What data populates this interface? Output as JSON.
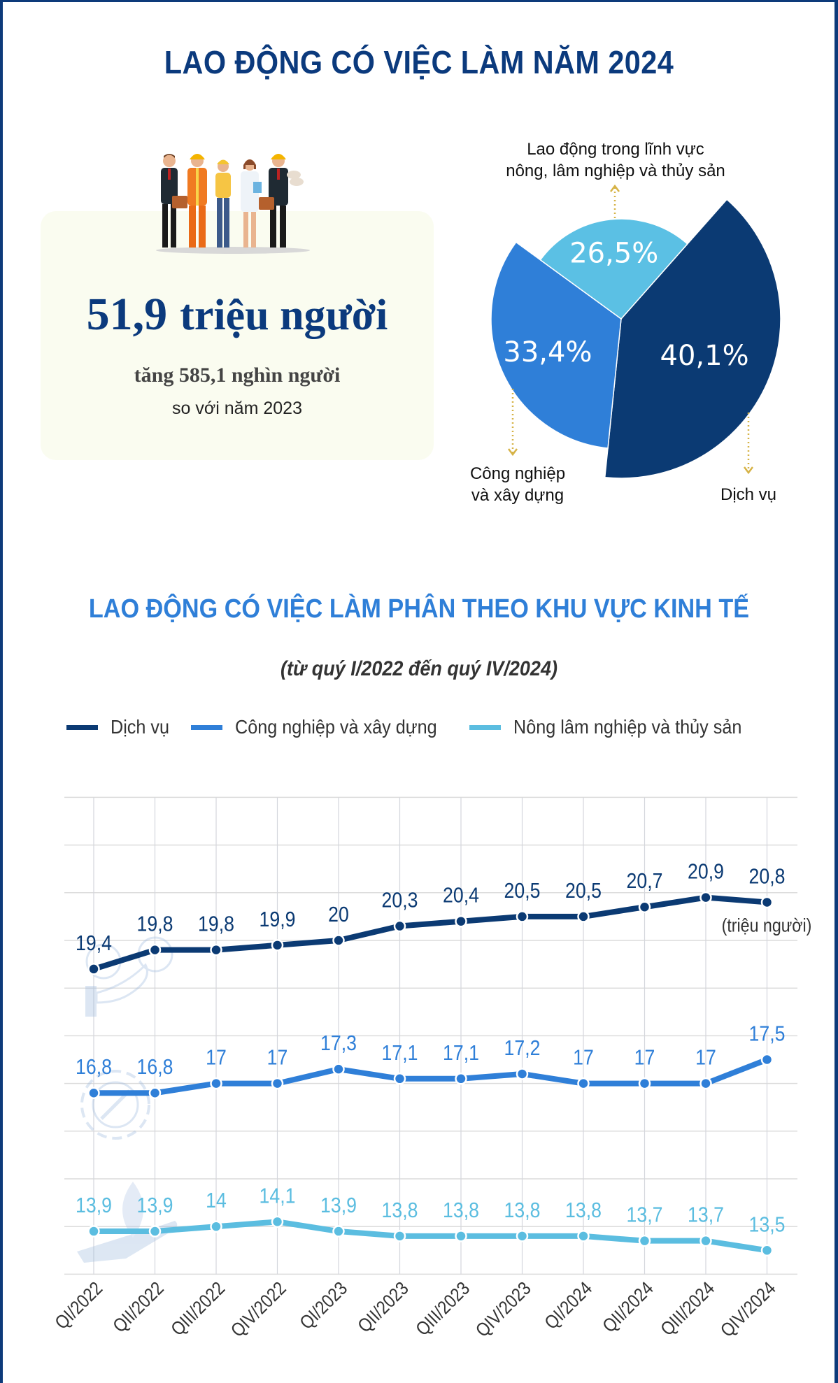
{
  "header": {
    "title": "LAO ĐỘNG CÓ VIỆC LÀM NĂM 2024"
  },
  "summary": {
    "illustration": "workers-illustration",
    "total_value": "51,9",
    "total_unit": "triệu người",
    "increase_text": "tăng 585,1 nghìn người",
    "compare_text": "so với  năm 2023"
  },
  "pie": {
    "labels": {
      "agri": [
        "Lao động trong lĩnh vực",
        "nông, lâm nghiệp và thủy sản"
      ],
      "industry": [
        "Công nghiệp",
        "và xây dựng"
      ],
      "services": [
        "Dịch vụ"
      ]
    }
  },
  "section": {
    "title": "LAO ĐỘNG CÓ VIỆC LÀM PHÂN THEO KHU VỰC KINH TẾ",
    "subtitle": "(từ quý I/2022 đến quý IV/2024)",
    "unit_note": "(triệu người)"
  },
  "legend": [
    {
      "label": "Dịch vụ",
      "color": "#0b3a73"
    },
    {
      "label": "Công nghiệp và xây dựng",
      "color": "#2f7fd8"
    },
    {
      "label": "Nông lâm nghiệp và thủy sản",
      "color": "#5bbde0"
    }
  ],
  "chart_data": [
    {
      "type": "pie",
      "title": "LAO ĐỘNG CÓ VIỆC LÀM NĂM 2024",
      "categories": [
        "Dịch vụ",
        "Công nghiệp và xây dựng",
        "Lao động trong lĩnh vực nông, lâm nghiệp và thủy sản"
      ],
      "values": [
        40.1,
        33.4,
        26.5
      ],
      "value_labels": [
        "40,1%",
        "33,4%",
        "26,5%"
      ],
      "colors": [
        "#0b3a73",
        "#2f7fd8",
        "#5bc0e4"
      ],
      "total": "51,9 triệu người",
      "note": "tăng 585,1 nghìn người so với năm 2023"
    },
    {
      "type": "line",
      "title": "LAO ĐỘNG CÓ VIỆC LÀM PHÂN THEO KHU VỰC KINH TẾ",
      "subtitle": "(từ quý I/2022 đến quý IV/2024)",
      "xlabel": "",
      "ylabel": "(triệu người)",
      "x": [
        "QI/2022",
        "QII/2022",
        "QIII/2022",
        "QIV/2022",
        "QI/2023",
        "QII/2023",
        "QIII/2023",
        "QIV/2023",
        "QI/2024",
        "QII/2024",
        "QIII/2024",
        "QIV/2024"
      ],
      "series": [
        {
          "name": "Dịch vụ",
          "color": "#0b3a73",
          "values": [
            19.4,
            19.8,
            19.8,
            19.9,
            20.0,
            20.3,
            20.4,
            20.5,
            20.5,
            20.7,
            20.9,
            20.8
          ],
          "labels": [
            "19,4",
            "19,8",
            "19,8",
            "19,9",
            "20",
            "20,3",
            "20,4",
            "20,5",
            "20,5",
            "20,7",
            "20,9",
            "20,8"
          ]
        },
        {
          "name": "Công nghiệp và xây dựng",
          "color": "#2f7fd8",
          "values": [
            16.8,
            16.8,
            17.0,
            17.0,
            17.3,
            17.1,
            17.1,
            17.2,
            17.0,
            17.0,
            17.0,
            17.5
          ],
          "labels": [
            "16,8",
            "16,8",
            "17",
            "17",
            "17,3",
            "17,1",
            "17,1",
            "17,2",
            "17",
            "17",
            "17",
            "17,5"
          ]
        },
        {
          "name": "Nông lâm nghiệp và thủy sản",
          "color": "#5bbde0",
          "values": [
            13.9,
            13.9,
            14.0,
            14.1,
            13.9,
            13.8,
            13.8,
            13.8,
            13.8,
            13.7,
            13.7,
            13.5
          ],
          "labels": [
            "13,9",
            "13,9",
            "14",
            "14,1",
            "13,9",
            "13,8",
            "13,8",
            "13,8",
            "13,8",
            "13,7",
            "13,7",
            "13,5"
          ]
        }
      ],
      "ylim": [
        13,
        23
      ],
      "grid": true,
      "legend_position": "top"
    }
  ]
}
